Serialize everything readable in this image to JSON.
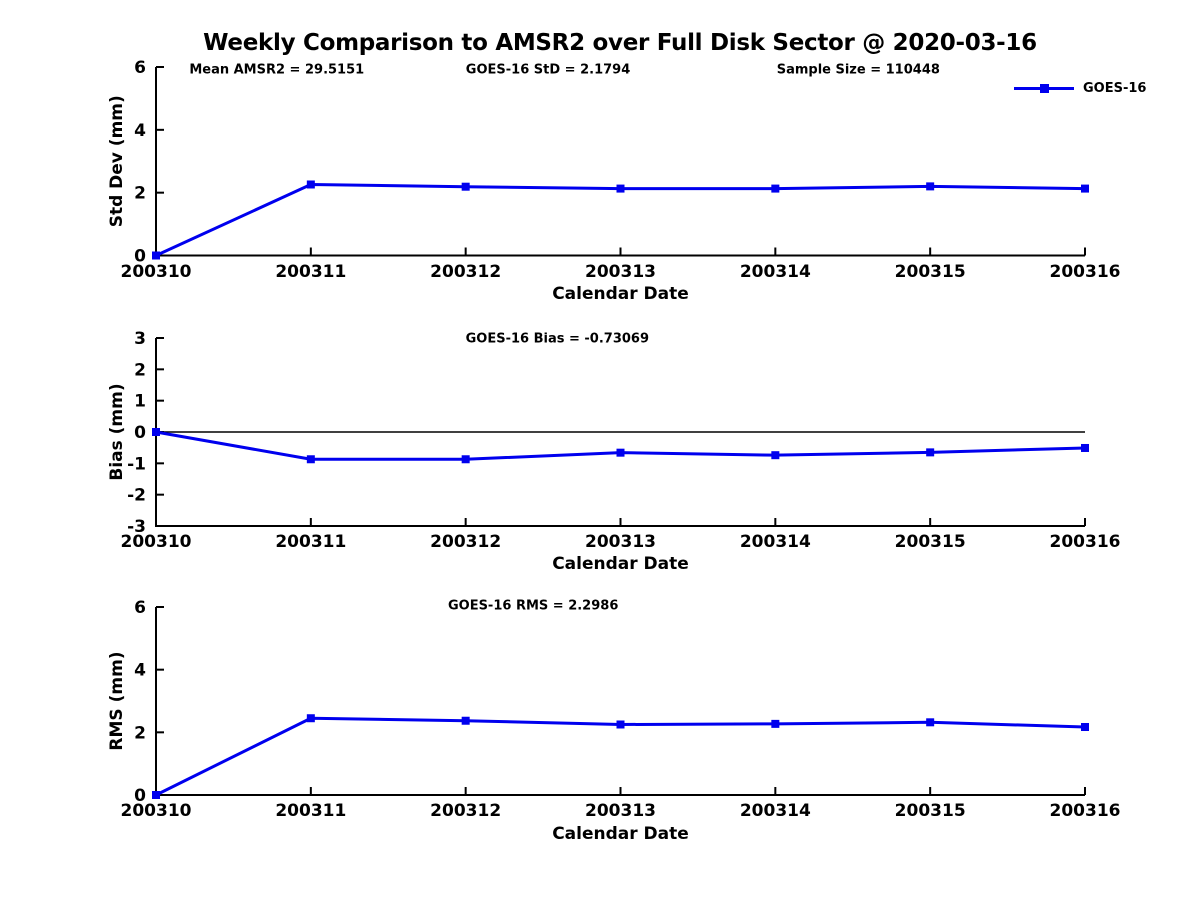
{
  "title": "Weekly Comparison to AMSR2 over Full Disk Sector @ 2020-03-16",
  "legend": {
    "label": "GOES-16"
  },
  "colors": {
    "series": "#0000ee",
    "axis": "#000000",
    "zero_line": "#000000"
  },
  "chart_data": [
    {
      "id": "stddev",
      "type": "line",
      "ylabel": "Std Dev (mm)",
      "xlabel": "Calendar Date",
      "categories": [
        "200310",
        "200311",
        "200312",
        "200313",
        "200314",
        "200315",
        "200316"
      ],
      "series": [
        {
          "name": "GOES-16",
          "values": [
            0,
            2.26,
            2.19,
            2.13,
            2.13,
            2.2,
            2.13
          ]
        }
      ],
      "ylim": [
        0,
        6
      ],
      "yticks": [
        0,
        2,
        4,
        6
      ],
      "zero_line": false,
      "grid": false,
      "annotations": [
        "Mean AMSR2 = 29.5151",
        "GOES-16 StD = 2.1794",
        "Sample Size = 110448"
      ]
    },
    {
      "id": "bias",
      "type": "line",
      "ylabel": "Bias (mm)",
      "xlabel": "Calendar Date",
      "categories": [
        "200310",
        "200311",
        "200312",
        "200313",
        "200314",
        "200315",
        "200316"
      ],
      "series": [
        {
          "name": "GOES-16",
          "values": [
            0,
            -0.87,
            -0.87,
            -0.66,
            -0.74,
            -0.65,
            -0.51
          ]
        }
      ],
      "ylim": [
        -3,
        3
      ],
      "yticks": [
        -3,
        -2,
        -1,
        0,
        1,
        2,
        3
      ],
      "zero_line": true,
      "grid": false,
      "annotations": [
        "GOES-16 Bias  = -0.73069"
      ]
    },
    {
      "id": "rms",
      "type": "line",
      "ylabel": "RMS (mm)",
      "xlabel": "Calendar Date",
      "categories": [
        "200310",
        "200311",
        "200312",
        "200313",
        "200314",
        "200315",
        "200316"
      ],
      "series": [
        {
          "name": "GOES-16",
          "values": [
            0,
            2.45,
            2.37,
            2.25,
            2.27,
            2.32,
            2.17
          ]
        }
      ],
      "ylim": [
        0,
        6
      ],
      "yticks": [
        0,
        2,
        4,
        6
      ],
      "zero_line": false,
      "grid": false,
      "annotations": [
        "GOES-16 RMS = 2.2986"
      ]
    }
  ]
}
